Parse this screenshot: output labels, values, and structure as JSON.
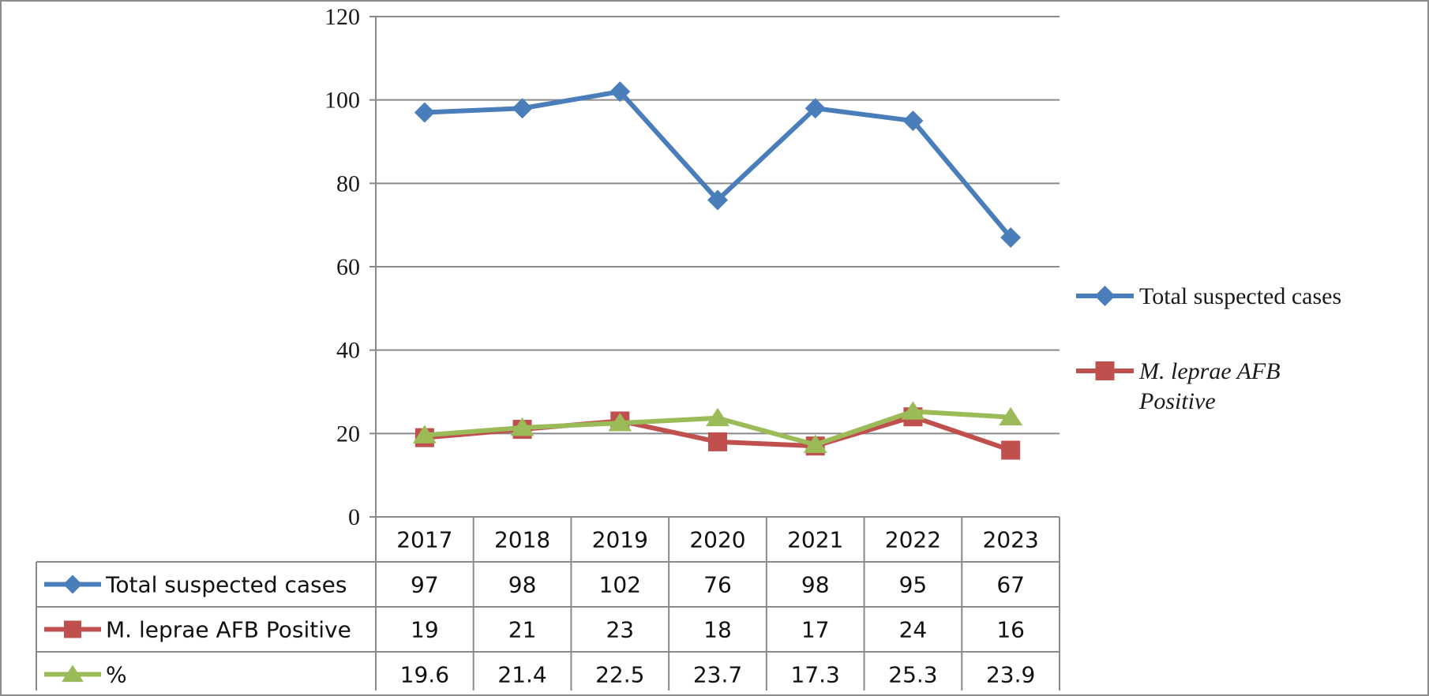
{
  "chart_data": {
    "type": "line",
    "categories": [
      "2017",
      "2018",
      "2019",
      "2020",
      "2021",
      "2022",
      "2023"
    ],
    "ylim": [
      0,
      120
    ],
    "yticks": [
      "0",
      "20",
      "40",
      "60",
      "80",
      "100",
      "120"
    ],
    "grid": true,
    "legend_position": "right",
    "series": [
      {
        "name": "Total suspected cases",
        "legend_label_lines": [
          "Total suspected cases"
        ],
        "values": [
          97,
          98,
          102,
          76,
          98,
          95,
          67
        ],
        "table_values": [
          "97",
          "98",
          "102",
          "76",
          "98",
          "95",
          "67"
        ],
        "color": "#4a7ebb",
        "marker": "diamond"
      },
      {
        "name": "M. leprae AFB Positive",
        "legend_label_lines": [
          "M. leprae AFB",
          "Positive"
        ],
        "values": [
          19,
          21,
          23,
          18,
          17,
          24,
          16
        ],
        "table_values": [
          "19",
          "21",
          "23",
          "18",
          "17",
          "24",
          "16"
        ],
        "color": "#c0504d",
        "marker": "square"
      },
      {
        "name": "%",
        "values": [
          19.6,
          21.4,
          22.5,
          23.7,
          17.3,
          25.3,
          23.9
        ],
        "table_values": [
          "19.6",
          "21.4",
          "22.5",
          "23.7",
          "17.3",
          "25.3",
          "23.9"
        ],
        "color": "#9bbb59",
        "marker": "triangle"
      }
    ]
  }
}
